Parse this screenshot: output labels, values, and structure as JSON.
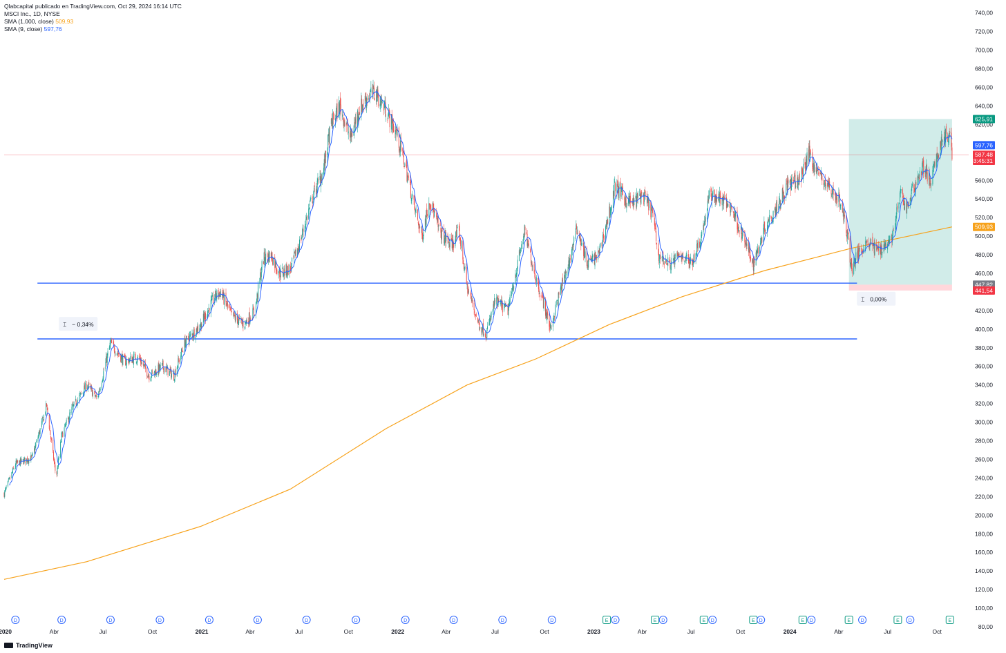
{
  "header": {
    "published": "Qlabcapital publicado en TradingView.com, Oct 29, 2024 16:14 UTC",
    "symbol": "MSCI Inc., 1D, NYSE",
    "sma_long_label": "SMA (1.000, close)",
    "sma_long_value": "509,93",
    "sma_short_label": "SMA (9, close)",
    "sma_short_value": "597,76"
  },
  "footer": {
    "brand": "TradingView"
  },
  "colors": {
    "up": "#26a69a",
    "down": "#ef5350",
    "sma_long": "#f7a21b",
    "sma_short": "#2962ff",
    "hline": "#2962ff",
    "target_zone": "#b2dfdb",
    "stop_zone": "#ffcdd2"
  },
  "chart_data": {
    "type": "candlestick",
    "symbol": "MSCI Inc.",
    "interval": "1D",
    "exchange": "NYSE",
    "x_range": [
      "2019-12-30",
      "2024-11-29"
    ],
    "ylim": [
      80,
      745
    ],
    "y_ticks": [
      "740,00",
      "720,00",
      "700,00",
      "680,00",
      "660,00",
      "640,00",
      "620,00",
      "600,00",
      "580,00",
      "560,00",
      "540,00",
      "520,00",
      "500,00",
      "480,00",
      "460,00",
      "440,00",
      "420,00",
      "400,00",
      "380,00",
      "360,00",
      "340,00",
      "320,00",
      "300,00",
      "280,00",
      "260,00",
      "240,00",
      "220,00",
      "200,00",
      "180,00",
      "160,00",
      "140,00",
      "120,00",
      "100,00",
      "80,00"
    ],
    "x_ticks": [
      {
        "date": "2020-01-01",
        "label": "2020",
        "year": true
      },
      {
        "date": "2020-04-01",
        "label": "Abr"
      },
      {
        "date": "2020-07-01",
        "label": "Jul"
      },
      {
        "date": "2020-10-01",
        "label": "Oct"
      },
      {
        "date": "2021-01-01",
        "label": "2021",
        "year": true
      },
      {
        "date": "2021-04-01",
        "label": "Abr"
      },
      {
        "date": "2021-07-01",
        "label": "Jul"
      },
      {
        "date": "2021-10-01",
        "label": "Oct"
      },
      {
        "date": "2022-01-01",
        "label": "2022",
        "year": true
      },
      {
        "date": "2022-04-01",
        "label": "Abr"
      },
      {
        "date": "2022-07-01",
        "label": "Jul"
      },
      {
        "date": "2022-10-01",
        "label": "Oct"
      },
      {
        "date": "2023-01-01",
        "label": "2023",
        "year": true
      },
      {
        "date": "2023-04-01",
        "label": "Abr"
      },
      {
        "date": "2023-07-01",
        "label": "Jul"
      },
      {
        "date": "2023-10-01",
        "label": "Oct"
      },
      {
        "date": "2024-01-01",
        "label": "2024",
        "year": true
      },
      {
        "date": "2024-04-01",
        "label": "Abr"
      },
      {
        "date": "2024-07-01",
        "label": "Jul"
      },
      {
        "date": "2024-10-01",
        "label": "Oct"
      }
    ],
    "price_path": [
      [
        "2019-12-30",
        223
      ],
      [
        "2020-01-20",
        255
      ],
      [
        "2020-02-20",
        262
      ],
      [
        "2020-03-10",
        300
      ],
      [
        "2020-03-18",
        318
      ],
      [
        "2020-03-30",
        265
      ],
      [
        "2020-04-05",
        240
      ],
      [
        "2020-04-15",
        285
      ],
      [
        "2020-05-05",
        315
      ],
      [
        "2020-06-01",
        340
      ],
      [
        "2020-06-20",
        325
      ],
      [
        "2020-07-15",
        385
      ],
      [
        "2020-08-10",
        365
      ],
      [
        "2020-09-05",
        370
      ],
      [
        "2020-09-25",
        350
      ],
      [
        "2020-10-20",
        360
      ],
      [
        "2020-11-10",
        350
      ],
      [
        "2020-11-30",
        385
      ],
      [
        "2020-12-30",
        405
      ],
      [
        "2021-01-25",
        435
      ],
      [
        "2021-02-05",
        440
      ],
      [
        "2021-02-25",
        415
      ],
      [
        "2021-03-20",
        405
      ],
      [
        "2021-04-10",
        420
      ],
      [
        "2021-04-25",
        475
      ],
      [
        "2021-05-10",
        480
      ],
      [
        "2021-05-25",
        460
      ],
      [
        "2021-06-15",
        465
      ],
      [
        "2021-07-01",
        490
      ],
      [
        "2021-07-25",
        540
      ],
      [
        "2021-08-15",
        570
      ],
      [
        "2021-08-30",
        620
      ],
      [
        "2021-09-15",
        640
      ],
      [
        "2021-10-05",
        605
      ],
      [
        "2021-10-20",
        635
      ],
      [
        "2021-11-05",
        650
      ],
      [
        "2021-11-20",
        655
      ],
      [
        "2021-12-10",
        635
      ],
      [
        "2021-12-30",
        610
      ],
      [
        "2022-01-15",
        575
      ],
      [
        "2022-02-01",
        530
      ],
      [
        "2022-02-15",
        500
      ],
      [
        "2022-03-01",
        540
      ],
      [
        "2022-03-20",
        505
      ],
      [
        "2022-04-10",
        490
      ],
      [
        "2022-04-25",
        505
      ],
      [
        "2022-05-10",
        445
      ],
      [
        "2022-06-01",
        405
      ],
      [
        "2022-06-15",
        395
      ],
      [
        "2022-07-01",
        430
      ],
      [
        "2022-07-25",
        420
      ],
      [
        "2022-08-10",
        465
      ],
      [
        "2022-08-25",
        505
      ],
      [
        "2022-09-15",
        455
      ],
      [
        "2022-10-01",
        425
      ],
      [
        "2022-10-12",
        400
      ],
      [
        "2022-10-25",
        430
      ],
      [
        "2022-11-15",
        470
      ],
      [
        "2022-12-01",
        510
      ],
      [
        "2022-12-20",
        470
      ],
      [
        "2023-01-10",
        480
      ],
      [
        "2023-01-30",
        525
      ],
      [
        "2023-02-10",
        555
      ],
      [
        "2023-02-28",
        540
      ],
      [
        "2023-03-15",
        535
      ],
      [
        "2023-04-01",
        545
      ],
      [
        "2023-04-20",
        525
      ],
      [
        "2023-05-01",
        480
      ],
      [
        "2023-05-20",
        470
      ],
      [
        "2023-06-15",
        480
      ],
      [
        "2023-07-01",
        470
      ],
      [
        "2023-07-20",
        500
      ],
      [
        "2023-08-05",
        545
      ],
      [
        "2023-08-25",
        540
      ],
      [
        "2023-09-15",
        530
      ],
      [
        "2023-10-05",
        500
      ],
      [
        "2023-10-25",
        470
      ],
      [
        "2023-11-15",
        510
      ],
      [
        "2023-12-05",
        530
      ],
      [
        "2023-12-28",
        555
      ],
      [
        "2024-01-20",
        560
      ],
      [
        "2024-02-05",
        590
      ],
      [
        "2024-02-20",
        570
      ],
      [
        "2024-03-10",
        555
      ],
      [
        "2024-04-01",
        540
      ],
      [
        "2024-04-15",
        510
      ],
      [
        "2024-04-25",
        465
      ],
      [
        "2024-05-10",
        485
      ],
      [
        "2024-05-25",
        495
      ],
      [
        "2024-06-10",
        485
      ],
      [
        "2024-06-25",
        490
      ],
      [
        "2024-07-10",
        500
      ],
      [
        "2024-07-25",
        545
      ],
      [
        "2024-08-05",
        530
      ],
      [
        "2024-08-20",
        555
      ],
      [
        "2024-09-05",
        575
      ],
      [
        "2024-09-20",
        558
      ],
      [
        "2024-10-05",
        595
      ],
      [
        "2024-10-15",
        610
      ],
      [
        "2024-10-25",
        602
      ],
      [
        "2024-10-29",
        587
      ]
    ],
    "sma_1000_path": [
      [
        "2019-12-30",
        131
      ],
      [
        "2020-06-01",
        150
      ],
      [
        "2020-12-30",
        188
      ],
      [
        "2021-06-15",
        228
      ],
      [
        "2021-12-10",
        293
      ],
      [
        "2022-05-10",
        340
      ],
      [
        "2022-09-15",
        368
      ],
      [
        "2023-01-30",
        405
      ],
      [
        "2023-06-15",
        435
      ],
      [
        "2023-11-15",
        463
      ],
      [
        "2024-04-25",
        487
      ],
      [
        "2024-10-29",
        509.93
      ]
    ],
    "last_close": 587.48,
    "horizontal_lines": [
      {
        "y": 449.5,
        "from": "2020-03-01",
        "to": "2024-05-05"
      },
      {
        "y": 389.5,
        "from": "2020-03-01",
        "to": "2024-05-05"
      }
    ],
    "measure_labels": [
      {
        "text": "− 0,34%",
        "date": "2020-04-15",
        "y": 405
      },
      {
        "text": "0,00%",
        "date": "2024-05-10",
        "y": 432
      }
    ],
    "position": {
      "from": "2024-04-20",
      "to": "2024-10-29",
      "target": 625.91,
      "entry": 447.82,
      "stop": 441.54
    },
    "price_tags": [
      {
        "text": "625,91",
        "y": 625.91,
        "color": "#089981"
      },
      {
        "text": "597,76",
        "y": 597.76,
        "color": "#2962ff"
      },
      {
        "text": "587,48",
        "y": 587.48,
        "color": "#f23645"
      },
      {
        "text": "03:45:31",
        "y": 581.0,
        "color": "#f23645"
      },
      {
        "text": "509,93",
        "y": 509.93,
        "color": "#f7a21b"
      },
      {
        "text": "447,82",
        "y": 447.82,
        "color": "#787b86"
      },
      {
        "text": "441,54",
        "y": 441.54,
        "color": "#f23645"
      }
    ],
    "events": [
      {
        "date": "2020-01-20",
        "type": "D"
      },
      {
        "date": "2020-04-15",
        "type": "D"
      },
      {
        "date": "2020-07-15",
        "type": "D"
      },
      {
        "date": "2020-10-15",
        "type": "D"
      },
      {
        "date": "2021-01-15",
        "type": "D"
      },
      {
        "date": "2021-04-15",
        "type": "D"
      },
      {
        "date": "2021-07-15",
        "type": "D"
      },
      {
        "date": "2021-10-15",
        "type": "D"
      },
      {
        "date": "2022-01-15",
        "type": "D"
      },
      {
        "date": "2022-04-15",
        "type": "D"
      },
      {
        "date": "2022-07-15",
        "type": "D"
      },
      {
        "date": "2022-10-15",
        "type": "D"
      },
      {
        "date": "2023-01-25",
        "type": "E"
      },
      {
        "date": "2023-02-10",
        "type": "D"
      },
      {
        "date": "2023-04-25",
        "type": "E"
      },
      {
        "date": "2023-05-10",
        "type": "D"
      },
      {
        "date": "2023-07-25",
        "type": "E"
      },
      {
        "date": "2023-08-10",
        "type": "D"
      },
      {
        "date": "2023-10-25",
        "type": "E"
      },
      {
        "date": "2023-11-08",
        "type": "D"
      },
      {
        "date": "2024-01-25",
        "type": "E"
      },
      {
        "date": "2024-02-10",
        "type": "D"
      },
      {
        "date": "2024-04-20",
        "type": "E"
      },
      {
        "date": "2024-05-15",
        "type": "D"
      },
      {
        "date": "2024-07-20",
        "type": "E"
      },
      {
        "date": "2024-08-12",
        "type": "D"
      },
      {
        "date": "2024-10-25",
        "type": "E"
      }
    ]
  }
}
